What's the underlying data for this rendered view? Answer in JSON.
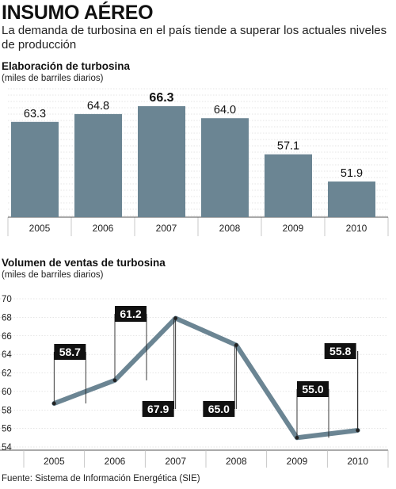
{
  "header": {
    "title": "INSUMO AÉREO",
    "subtitle": "La demanda de turbosina en el país tiende a superar los actuales niveles de producción"
  },
  "source": "Fuente: Sistema de Información Energética (SIE)",
  "colors": {
    "bar": "#6b8593",
    "line": "#6b8593",
    "label_box": "#111111",
    "grid": "#cccccc"
  },
  "chart_data": [
    {
      "type": "bar",
      "title": "Elaboración de turbosina",
      "ylabel": "(miles de barriles diarios)",
      "categories": [
        "2005",
        "2006",
        "2007",
        "2008",
        "2009",
        "2010"
      ],
      "values": [
        63.3,
        64.8,
        66.3,
        64.0,
        57.1,
        51.9
      ],
      "value_labels": [
        "63.3",
        "64.8",
        "66.3",
        "64.0",
        "57.1",
        "51.9"
      ],
      "highlight_index": 2,
      "grid": true
    },
    {
      "type": "line",
      "title": "Volumen de ventas de turbosina",
      "ylabel": "(miles de barriles diarios)",
      "categories": [
        "2005",
        "2006",
        "2007",
        "2008",
        "2009",
        "2010"
      ],
      "values": [
        58.7,
        61.2,
        67.9,
        65.0,
        55.0,
        55.8
      ],
      "value_labels": [
        "58.7",
        "61.2",
        "67.9",
        "65.0",
        "55.0",
        "55.8"
      ],
      "label_side": [
        "above",
        "above",
        "below",
        "below",
        "above",
        "above"
      ],
      "yticks": [
        "70",
        "68",
        "66",
        "64",
        "62",
        "60",
        "58",
        "56",
        "54"
      ],
      "ylim": [
        54,
        70
      ],
      "grid": true
    }
  ]
}
